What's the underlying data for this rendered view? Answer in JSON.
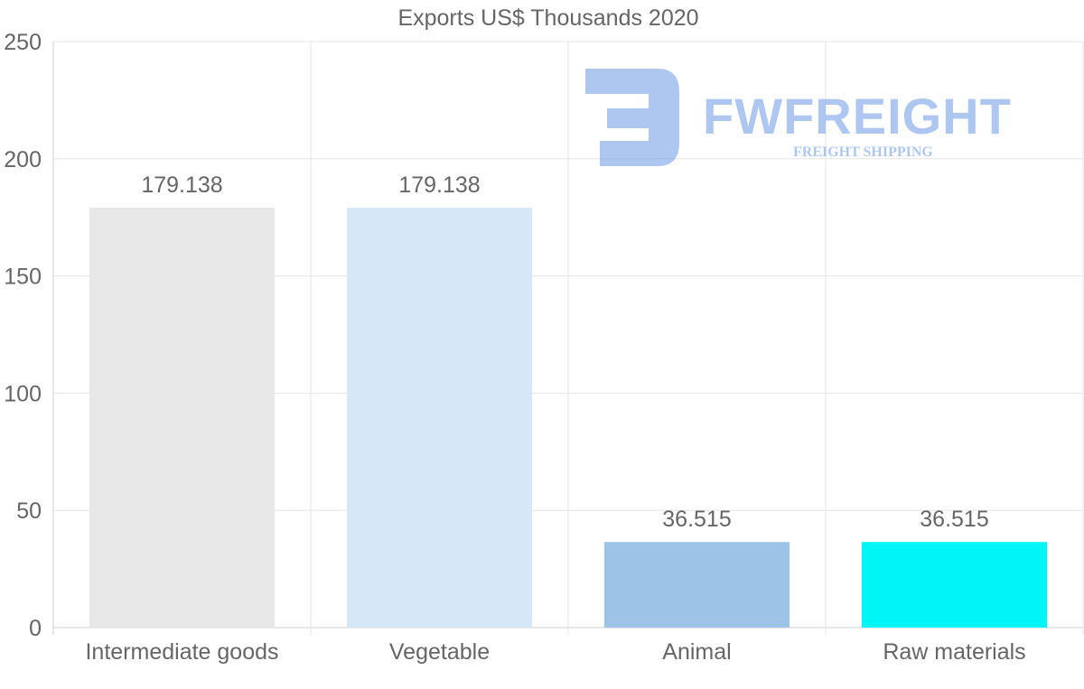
{
  "chart_data": {
    "type": "bar",
    "title": "Exports US$ Thousands 2020",
    "categories": [
      "Intermediate goods",
      "Vegetable",
      "Animal",
      "Raw materials"
    ],
    "values": [
      179.138,
      179.138,
      36.515,
      36.515
    ],
    "value_labels": [
      "179.138",
      "179.138",
      "36.515",
      "36.515"
    ],
    "colors": [
      "#e8e8e8",
      "#d6e8f8",
      "#9dc4e6",
      "#00f5f7"
    ],
    "ylim": [
      0,
      250
    ],
    "yticks": [
      0,
      50,
      100,
      150,
      200,
      250
    ],
    "xlabel": "",
    "ylabel": "",
    "grid": true
  },
  "watermark": {
    "name": "FWFREIGHT",
    "subtitle": "FREIGHT SHIPPING"
  }
}
